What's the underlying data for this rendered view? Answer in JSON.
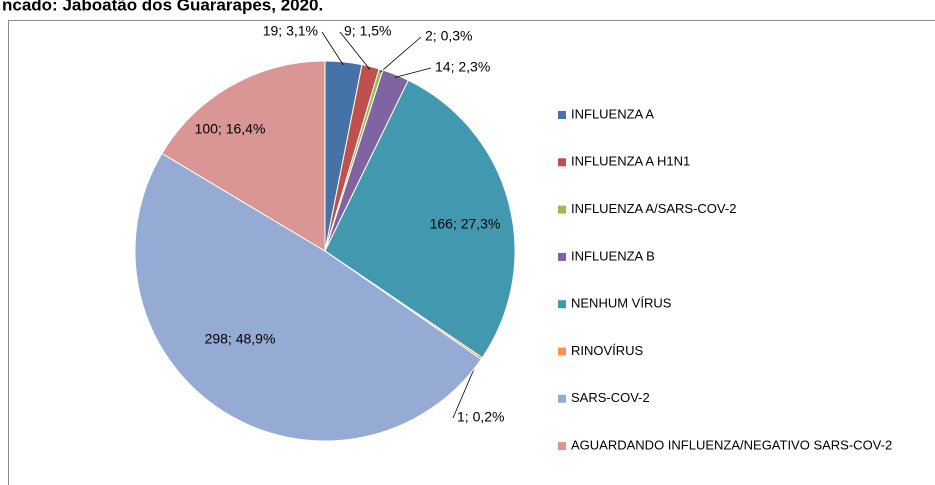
{
  "chart_data": {
    "type": "pie",
    "title": "ncado: Jaboatão dos Guararapes, 2020.",
    "categories": [
      "INFLUENZA A",
      "INFLUENZA A H1N1",
      "INFLUENZA A/SARS-COV-2",
      "INFLUENZA B",
      "NENHUM VÍRUS",
      "RINOVÍRUS",
      "SARS-COV-2",
      "AGUARDANDO INFLUENZA/NEGATIVO SARS-COV-2"
    ],
    "values": [
      19,
      9,
      2,
      14,
      166,
      1,
      298,
      100
    ],
    "value_labels": [
      "19; 3,1%",
      "9; 1,5%",
      "2; 0,3%",
      "14; 2,3%",
      "166; 27,3%",
      "1; 0,2%",
      "298; 48,9%",
      "100; 16,4%"
    ],
    "colors": [
      "#4572a7",
      "#c0504d",
      "#9bbb59",
      "#8064a2",
      "#4198af",
      "#f79646",
      "#95abd3",
      "#d99694"
    ],
    "legend": "right"
  }
}
